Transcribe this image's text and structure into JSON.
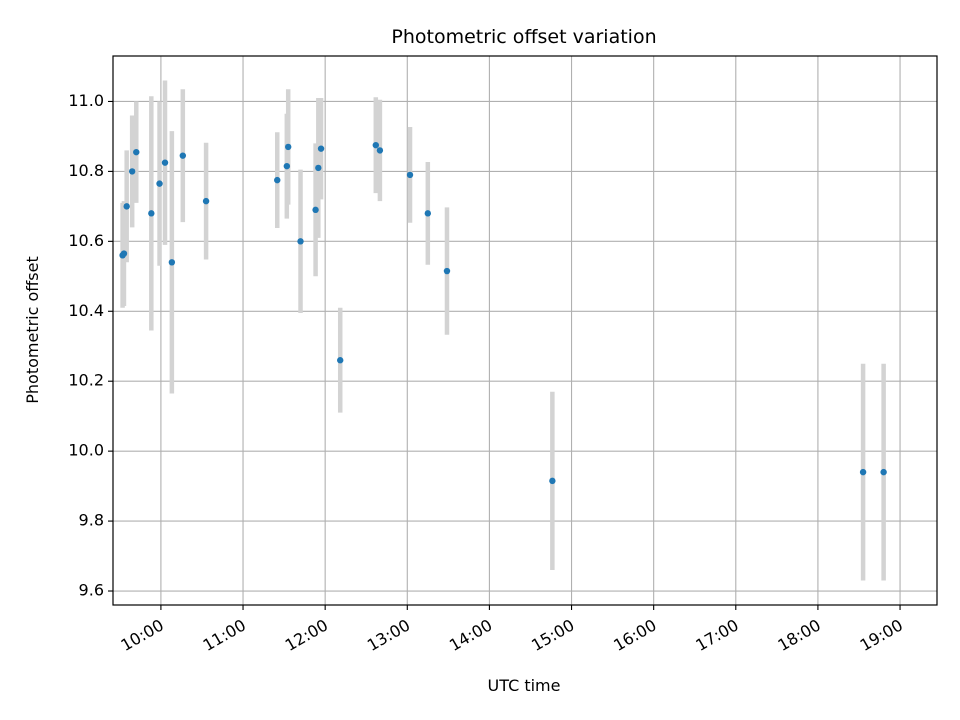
{
  "chart_data": {
    "type": "scatter",
    "title": "Photometric offset variation",
    "xlabel": "UTC time",
    "ylabel": "Photometric offset",
    "xlim": [
      "09:25",
      "19:27"
    ],
    "ylim": [
      9.56,
      11.13
    ],
    "x_ticks": [
      "10:00",
      "11:00",
      "12:00",
      "13:00",
      "14:00",
      "15:00",
      "16:00",
      "17:00",
      "18:00",
      "19:00"
    ],
    "y_ticks": [
      "9.6",
      "9.8",
      "10.0",
      "10.2",
      "10.4",
      "10.6",
      "10.8",
      "11.0"
    ],
    "grid": true,
    "colors": {
      "point": "#1f77b4",
      "errorbar": "#d3d3d3",
      "grid": "#b0b0b0"
    },
    "series": [
      {
        "points": [
          {
            "time": "09:32",
            "y": 10.56,
            "err": 0.15
          },
          {
            "time": "09:33",
            "y": 10.565,
            "err": 0.15
          },
          {
            "time": "09:35",
            "y": 10.7,
            "err": 0.16
          },
          {
            "time": "09:39",
            "y": 10.8,
            "err": 0.16
          },
          {
            "time": "09:42",
            "y": 10.855,
            "err": 0.145
          },
          {
            "time": "09:53",
            "y": 10.68,
            "err": 0.335
          },
          {
            "time": "09:59",
            "y": 10.765,
            "err": 0.235
          },
          {
            "time": "10:03",
            "y": 10.825,
            "err": 0.235
          },
          {
            "time": "10:08",
            "y": 10.54,
            "err": 0.375
          },
          {
            "time": "10:16",
            "y": 10.845,
            "err": 0.19
          },
          {
            "time": "10:33",
            "y": 10.715,
            "err": 0.167
          },
          {
            "time": "11:25",
            "y": 10.775,
            "err": 0.137
          },
          {
            "time": "11:32",
            "y": 10.815,
            "err": 0.15
          },
          {
            "time": "11:33",
            "y": 10.87,
            "err": 0.165
          },
          {
            "time": "11:42",
            "y": 10.6,
            "err": 0.205
          },
          {
            "time": "11:53",
            "y": 10.69,
            "err": 0.19
          },
          {
            "time": "11:55",
            "y": 10.81,
            "err": 0.2
          },
          {
            "time": "11:57",
            "y": 10.865,
            "err": 0.145
          },
          {
            "time": "12:11",
            "y": 10.26,
            "err": 0.15
          },
          {
            "time": "12:37",
            "y": 10.875,
            "err": 0.137
          },
          {
            "time": "12:40",
            "y": 10.86,
            "err": 0.145
          },
          {
            "time": "13:02",
            "y": 10.79,
            "err": 0.137
          },
          {
            "time": "13:15",
            "y": 10.68,
            "err": 0.147
          },
          {
            "time": "13:29",
            "y": 10.515,
            "err": 0.182
          },
          {
            "time": "14:46",
            "y": 9.915,
            "err": 0.255
          },
          {
            "time": "18:33",
            "y": 9.94,
            "err": 0.31
          },
          {
            "time": "18:48",
            "y": 9.94,
            "err": 0.31
          }
        ]
      }
    ]
  }
}
